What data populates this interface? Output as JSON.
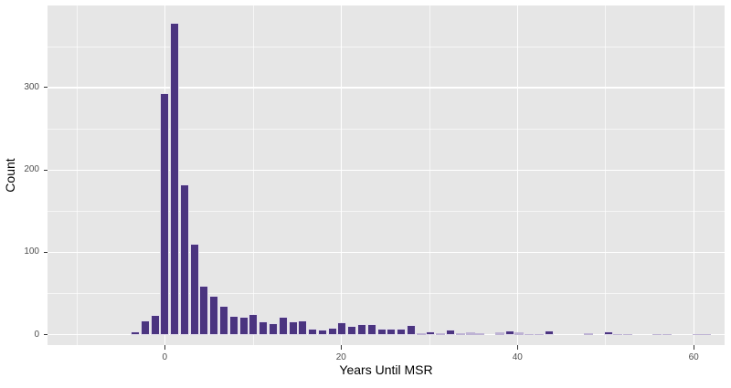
{
  "chart_data": {
    "type": "bar",
    "subtype": "histogram",
    "title": "",
    "xlabel": "Years Until MSR",
    "ylabel": "Count",
    "xlim": [
      -13.3,
      63.5
    ],
    "ylim": [
      -12.5,
      399.6
    ],
    "x_major_ticks": [
      0,
      20,
      40,
      60
    ],
    "x_minor_gridlines": [
      -10,
      10,
      30,
      50
    ],
    "y_major_ticks": [
      0,
      100,
      200,
      300
    ],
    "y_minor_gridlines": [
      50,
      150,
      250,
      350
    ],
    "bin_width": 1.118,
    "grid": true,
    "legend": "none",
    "colors": {
      "bar_fill": "#4b3480",
      "bar_small_fill": "#beb3d4",
      "bar_stroke": "#ffffff",
      "panel_bg": "#e6e6e6",
      "gridline": "#ffffff",
      "tick_label": "#4d4d4d",
      "axis_title": "#000000",
      "tick_mark": "#333333",
      "figure_bg": "#ffffff"
    },
    "bars": [
      {
        "x": -3.35,
        "count": 4
      },
      {
        "x": -2.24,
        "count": 18
      },
      {
        "x": -1.12,
        "count": 24
      },
      {
        "x": 0.0,
        "count": 293
      },
      {
        "x": 1.12,
        "count": 379
      },
      {
        "x": 2.24,
        "count": 183
      },
      {
        "x": 3.35,
        "count": 111
      },
      {
        "x": 4.47,
        "count": 60
      },
      {
        "x": 5.59,
        "count": 47
      },
      {
        "x": 6.71,
        "count": 35
      },
      {
        "x": 7.82,
        "count": 23
      },
      {
        "x": 8.94,
        "count": 22
      },
      {
        "x": 10.06,
        "count": 25
      },
      {
        "x": 11.18,
        "count": 16
      },
      {
        "x": 12.29,
        "count": 14
      },
      {
        "x": 13.41,
        "count": 22
      },
      {
        "x": 14.53,
        "count": 16
      },
      {
        "x": 15.65,
        "count": 18
      },
      {
        "x": 16.76,
        "count": 7
      },
      {
        "x": 17.88,
        "count": 6
      },
      {
        "x": 19.0,
        "count": 9
      },
      {
        "x": 20.12,
        "count": 15
      },
      {
        "x": 21.23,
        "count": 11
      },
      {
        "x": 22.35,
        "count": 13
      },
      {
        "x": 23.47,
        "count": 13
      },
      {
        "x": 24.59,
        "count": 7
      },
      {
        "x": 25.7,
        "count": 7
      },
      {
        "x": 26.82,
        "count": 7
      },
      {
        "x": 27.94,
        "count": 12
      },
      {
        "x": 29.06,
        "count": 2
      },
      {
        "x": 30.17,
        "count": 4
      },
      {
        "x": 31.29,
        "count": 2
      },
      {
        "x": 32.41,
        "count": 6
      },
      {
        "x": 33.53,
        "count": 2
      },
      {
        "x": 34.64,
        "count": 3
      },
      {
        "x": 35.76,
        "count": 2
      },
      {
        "x": 38.0,
        "count": 3
      },
      {
        "x": 39.11,
        "count": 5
      },
      {
        "x": 40.23,
        "count": 3
      },
      {
        "x": 41.35,
        "count": 1
      },
      {
        "x": 42.47,
        "count": 1
      },
      {
        "x": 43.58,
        "count": 5
      },
      {
        "x": 48.05,
        "count": 2
      },
      {
        "x": 50.29,
        "count": 4
      },
      {
        "x": 51.4,
        "count": 1
      },
      {
        "x": 52.52,
        "count": 1
      },
      {
        "x": 55.87,
        "count": 1
      },
      {
        "x": 56.99,
        "count": 1
      },
      {
        "x": 60.34,
        "count": 1
      },
      {
        "x": 61.46,
        "count": 1
      }
    ]
  }
}
